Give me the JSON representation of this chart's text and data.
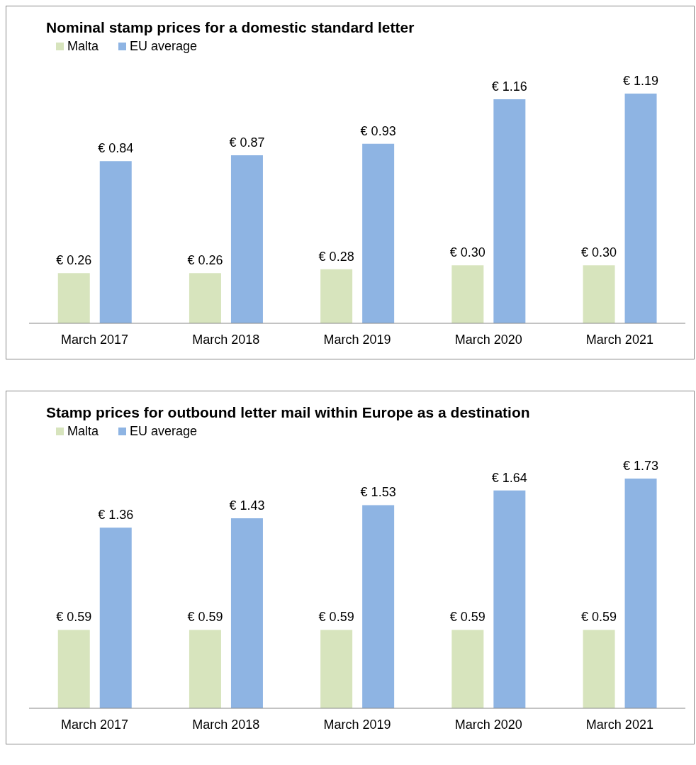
{
  "chart_data": [
    {
      "type": "bar",
      "title": "Nominal stamp prices for a domestic standard letter",
      "categories": [
        "March 2017",
        "March 2018",
        "March 2019",
        "March 2020",
        "March 2021"
      ],
      "legend": "top left",
      "grid": false,
      "series": [
        {
          "name": "Malta",
          "color": "#d7e4bd",
          "values": [
            0.26,
            0.26,
            0.28,
            0.3,
            0.3
          ],
          "value_labels": [
            "€ 0.26",
            "€ 0.26",
            "€ 0.28",
            "€ 0.30",
            "€ 0.30"
          ]
        },
        {
          "name": "EU average",
          "color": "#8eb4e3",
          "values": [
            0.84,
            0.87,
            0.93,
            1.16,
            1.19
          ],
          "value_labels": [
            "€ 0.84",
            "€ 0.87",
            "€ 0.93",
            "€ 1.16",
            "€ 1.19"
          ]
        }
      ]
    },
    {
      "type": "bar",
      "title": "Stamp prices for outbound letter mail within Europe as a destination",
      "categories": [
        "March 2017",
        "March 2018",
        "March 2019",
        "March 2020",
        "March 2021"
      ],
      "legend": "top left",
      "grid": false,
      "series": [
        {
          "name": "Malta",
          "color": "#d7e4bd",
          "values": [
            0.59,
            0.59,
            0.59,
            0.59,
            0.59
          ],
          "value_labels": [
            "€ 0.59",
            "€ 0.59",
            "€ 0.59",
            "€ 0.59",
            "€ 0.59"
          ]
        },
        {
          "name": "EU average",
          "color": "#8eb4e3",
          "values": [
            1.36,
            1.43,
            1.53,
            1.64,
            1.73
          ],
          "value_labels": [
            "€ 1.36",
            "€ 1.43",
            "€ 1.53",
            "€ 1.64",
            "€ 1.73"
          ]
        }
      ]
    }
  ]
}
